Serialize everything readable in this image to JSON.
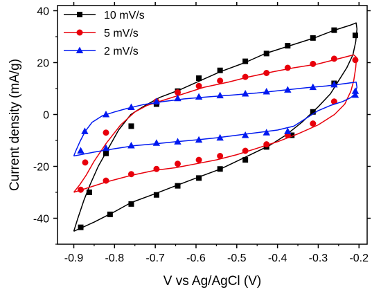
{
  "chart_data": {
    "type": "line",
    "xlabel": "V vs Ag/AgCl (V)",
    "ylabel": "Current density (mA/g)",
    "xlim": [
      -0.94,
      -0.18
    ],
    "ylim": [
      -50,
      42
    ],
    "xticks": [
      -0.9,
      -0.8,
      -0.7,
      -0.6,
      -0.5,
      -0.4,
      -0.3,
      -0.2
    ],
    "xtick_labels": [
      "-0.9",
      "-0.8",
      "-0.7",
      "-0.6",
      "-0.5",
      "-0.4",
      "-0.3",
      "-0.2"
    ],
    "yticks": [
      -40,
      -20,
      0,
      20,
      40
    ],
    "ytick_labels": [
      "-40",
      "-20",
      "0",
      "20",
      "40"
    ],
    "legend_position": "top-left",
    "grid": false,
    "series": [
      {
        "name": "10 mV/s",
        "color": "#000000",
        "marker": "square",
        "curve": [
          [
            -0.9,
            -45.0
          ],
          [
            -0.89,
            -40.0
          ],
          [
            -0.875,
            -33.0
          ],
          [
            -0.86,
            -27.0
          ],
          [
            -0.84,
            -20.0
          ],
          [
            -0.815,
            -13.0
          ],
          [
            -0.79,
            -6.0
          ],
          [
            -0.76,
            0.0
          ],
          [
            -0.73,
            3.0
          ],
          [
            -0.69,
            6.5
          ],
          [
            -0.64,
            9.5
          ],
          [
            -0.59,
            13.0
          ],
          [
            -0.54,
            16.5
          ],
          [
            -0.48,
            20.0
          ],
          [
            -0.43,
            23.5
          ],
          [
            -0.37,
            26.5
          ],
          [
            -0.31,
            29.5
          ],
          [
            -0.26,
            32.5
          ],
          [
            -0.22,
            34.5
          ],
          [
            -0.207,
            35.3
          ],
          [
            -0.205,
            33.0
          ],
          [
            -0.208,
            28.0
          ],
          [
            -0.215,
            23.0
          ],
          [
            -0.23,
            18.0
          ],
          [
            -0.25,
            13.0
          ],
          [
            -0.27,
            8.0
          ],
          [
            -0.3,
            3.0
          ],
          [
            -0.34,
            -3.0
          ],
          [
            -0.38,
            -8.0
          ],
          [
            -0.42,
            -12.0
          ],
          [
            -0.48,
            -16.5
          ],
          [
            -0.54,
            -21.0
          ],
          [
            -0.6,
            -24.5
          ],
          [
            -0.65,
            -27.5
          ],
          [
            -0.7,
            -30.5
          ],
          [
            -0.76,
            -34.0
          ],
          [
            -0.8,
            -37.5
          ],
          [
            -0.85,
            -41.5
          ],
          [
            -0.9,
            -45.0
          ]
        ],
        "markers": [
          [
            -0.209,
            30.5
          ],
          [
            -0.261,
            12.0
          ],
          [
            -0.313,
            1.0
          ],
          [
            -0.365,
            -8.0
          ],
          [
            -0.427,
            -12.5
          ],
          [
            -0.479,
            -17.5
          ],
          [
            -0.541,
            -21.0
          ],
          [
            -0.593,
            -24.5
          ],
          [
            -0.645,
            -27.5
          ],
          [
            -0.697,
            -31.0
          ],
          [
            -0.759,
            -34.5
          ],
          [
            -0.811,
            -38.5
          ],
          [
            -0.862,
            -30.0
          ],
          [
            -0.883,
            -43.5
          ],
          [
            -0.821,
            -15.0
          ],
          [
            -0.759,
            -4.5
          ],
          [
            -0.697,
            4.0
          ],
          [
            -0.645,
            9.0
          ],
          [
            -0.593,
            14.0
          ],
          [
            -0.541,
            17.0
          ],
          [
            -0.479,
            20.5
          ],
          [
            -0.427,
            23.5
          ],
          [
            -0.375,
            26.5
          ],
          [
            -0.313,
            29.5
          ],
          [
            -0.261,
            32.5
          ]
        ]
      },
      {
        "name": "5 mV/s",
        "color": "#e8000b",
        "marker": "circle",
        "curve": [
          [
            -0.9,
            -30.0
          ],
          [
            -0.885,
            -27.0
          ],
          [
            -0.87,
            -23.5
          ],
          [
            -0.85,
            -18.0
          ],
          [
            -0.82,
            -11.0
          ],
          [
            -0.785,
            -4.0
          ],
          [
            -0.75,
            1.0
          ],
          [
            -0.72,
            3.5
          ],
          [
            -0.68,
            5.5
          ],
          [
            -0.63,
            8.0
          ],
          [
            -0.58,
            10.5
          ],
          [
            -0.52,
            12.5
          ],
          [
            -0.47,
            14.5
          ],
          [
            -0.41,
            16.5
          ],
          [
            -0.36,
            18.0
          ],
          [
            -0.3,
            19.5
          ],
          [
            -0.25,
            21.5
          ],
          [
            -0.213,
            23.0
          ],
          [
            -0.206,
            22.0
          ],
          [
            -0.208,
            18.0
          ],
          [
            -0.213,
            13.0
          ],
          [
            -0.22,
            9.0
          ],
          [
            -0.235,
            4.0
          ],
          [
            -0.26,
            0.0
          ],
          [
            -0.3,
            -4.0
          ],
          [
            -0.35,
            -7.5
          ],
          [
            -0.4,
            -10.5
          ],
          [
            -0.45,
            -13.0
          ],
          [
            -0.5,
            -15.5
          ],
          [
            -0.55,
            -17.5
          ],
          [
            -0.6,
            -19.0
          ],
          [
            -0.65,
            -20.5
          ],
          [
            -0.7,
            -21.5
          ],
          [
            -0.76,
            -23.5
          ],
          [
            -0.82,
            -26.0
          ],
          [
            -0.86,
            -28.0
          ],
          [
            -0.9,
            -30.0
          ]
        ],
        "markers": [
          [
            -0.209,
            21.0
          ],
          [
            -0.261,
            5.0
          ],
          [
            -0.313,
            -3.5
          ],
          [
            -0.375,
            -8.0
          ],
          [
            -0.427,
            -11.5
          ],
          [
            -0.479,
            -14.0
          ],
          [
            -0.541,
            -16.0
          ],
          [
            -0.593,
            -17.5
          ],
          [
            -0.645,
            -19.0
          ],
          [
            -0.697,
            -21.0
          ],
          [
            -0.759,
            -23.0
          ],
          [
            -0.821,
            -25.5
          ],
          [
            -0.883,
            -29.0
          ],
          [
            -0.872,
            -18.5
          ],
          [
            -0.821,
            -7.0
          ],
          [
            -0.697,
            5.0
          ],
          [
            -0.645,
            8.5
          ],
          [
            -0.593,
            11.0
          ],
          [
            -0.541,
            13.0
          ],
          [
            -0.479,
            14.5
          ],
          [
            -0.427,
            16.0
          ],
          [
            -0.375,
            18.0
          ],
          [
            -0.313,
            19.5
          ],
          [
            -0.261,
            21.5
          ]
        ]
      },
      {
        "name": "2 mV/s",
        "color": "#0019f0",
        "marker": "triangle",
        "curve": [
          [
            -0.9,
            -16.0
          ],
          [
            -0.895,
            -14.0
          ],
          [
            -0.885,
            -10.5
          ],
          [
            -0.872,
            -6.5
          ],
          [
            -0.855,
            -3.0
          ],
          [
            -0.83,
            -0.5
          ],
          [
            -0.8,
            1.0
          ],
          [
            -0.77,
            2.3
          ],
          [
            -0.73,
            3.8
          ],
          [
            -0.68,
            5.0
          ],
          [
            -0.63,
            6.0
          ],
          [
            -0.57,
            6.8
          ],
          [
            -0.51,
            7.5
          ],
          [
            -0.45,
            8.3
          ],
          [
            -0.39,
            9.3
          ],
          [
            -0.33,
            10.3
          ],
          [
            -0.28,
            11.0
          ],
          [
            -0.23,
            12.0
          ],
          [
            -0.207,
            12.5
          ],
          [
            -0.205,
            10.5
          ],
          [
            -0.21,
            8.0
          ],
          [
            -0.22,
            6.5
          ],
          [
            -0.24,
            5.0
          ],
          [
            -0.27,
            3.5
          ],
          [
            -0.3,
            1.5
          ],
          [
            -0.33,
            -1.5
          ],
          [
            -0.36,
            -4.5
          ],
          [
            -0.4,
            -6.0
          ],
          [
            -0.45,
            -7.0
          ],
          [
            -0.5,
            -8.0
          ],
          [
            -0.55,
            -9.0
          ],
          [
            -0.6,
            -9.8
          ],
          [
            -0.65,
            -10.5
          ],
          [
            -0.7,
            -11.3
          ],
          [
            -0.75,
            -12.0
          ],
          [
            -0.8,
            -13.2
          ],
          [
            -0.85,
            -14.5
          ],
          [
            -0.9,
            -16.0
          ]
        ],
        "markers": [
          [
            -0.209,
            9.0
          ],
          [
            -0.209,
            7.5
          ],
          [
            -0.261,
            11.5
          ],
          [
            -0.313,
            10.5
          ],
          [
            -0.375,
            9.5
          ],
          [
            -0.427,
            8.8
          ],
          [
            -0.479,
            8.0
          ],
          [
            -0.541,
            7.3
          ],
          [
            -0.593,
            6.8
          ],
          [
            -0.645,
            6.2
          ],
          [
            -0.697,
            5.0
          ],
          [
            -0.759,
            2.8
          ],
          [
            -0.821,
            0.0
          ],
          [
            -0.873,
            -6.5
          ],
          [
            -0.883,
            -14.0
          ],
          [
            -0.821,
            -13.0
          ],
          [
            -0.759,
            -12.0
          ],
          [
            -0.697,
            -11.0
          ],
          [
            -0.645,
            -10.5
          ],
          [
            -0.593,
            -9.8
          ],
          [
            -0.541,
            -9.0
          ],
          [
            -0.479,
            -8.0
          ],
          [
            -0.427,
            -7.0
          ],
          [
            -0.375,
            -6.5
          ]
        ]
      }
    ]
  }
}
